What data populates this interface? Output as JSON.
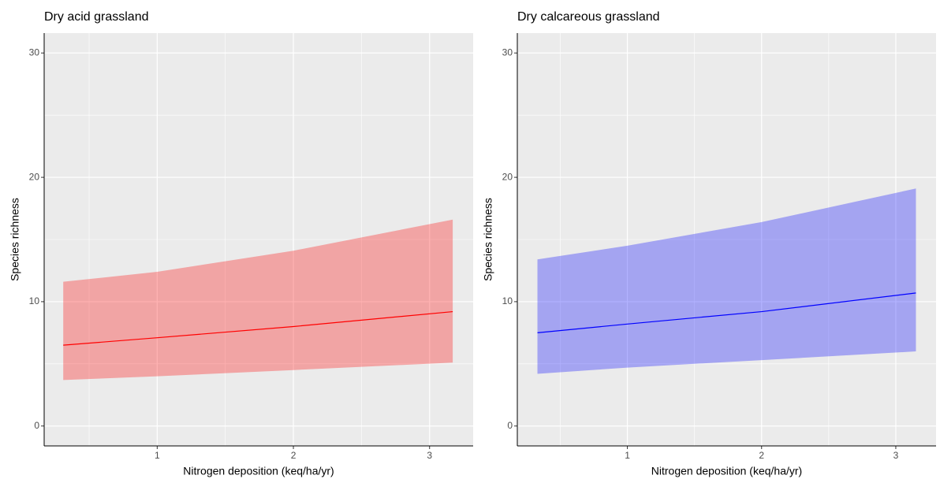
{
  "chart_data": [
    {
      "type": "line",
      "title": "Dry acid grassland",
      "xlabel": "Nitrogen deposition (keq/ha/yr)",
      "ylabel": "Species richness",
      "x": [
        0.31,
        1,
        2,
        3.17
      ],
      "series": [
        {
          "color": "#ff0000",
          "values": [
            6.5,
            7.1,
            8.0,
            9.2
          ],
          "lower": [
            3.7,
            4.0,
            4.5,
            5.1
          ],
          "upper": [
            11.6,
            12.4,
            14.1,
            16.6
          ]
        }
      ],
      "xlim": [
        0.17,
        3.32
      ],
      "ylim": [
        -1.6,
        31.6
      ],
      "xticks": [
        1,
        2,
        3
      ],
      "yticks": [
        0,
        10,
        20,
        30
      ],
      "xminor": [
        0.5,
        1.5,
        2.5
      ],
      "yminor": [
        5,
        15,
        25
      ],
      "grid": true
    },
    {
      "type": "line",
      "title": "Dry calcareous grassland",
      "xlabel": "Nitrogen deposition (keq/ha/yr)",
      "ylabel": "Species richness",
      "x": [
        0.33,
        1,
        2,
        3.15
      ],
      "series": [
        {
          "color": "#0000ff",
          "values": [
            7.5,
            8.2,
            9.2,
            10.7
          ],
          "lower": [
            4.2,
            4.7,
            5.3,
            6.0
          ],
          "upper": [
            13.4,
            14.5,
            16.4,
            19.1
          ]
        }
      ],
      "xlim": [
        0.18,
        3.3
      ],
      "ylim": [
        -1.6,
        31.6
      ],
      "xticks": [
        1,
        2,
        3
      ],
      "yticks": [
        0,
        10,
        20,
        30
      ],
      "xminor": [
        0.5,
        1.5,
        2.5
      ],
      "yminor": [
        5,
        15,
        25
      ],
      "grid": true
    }
  ]
}
